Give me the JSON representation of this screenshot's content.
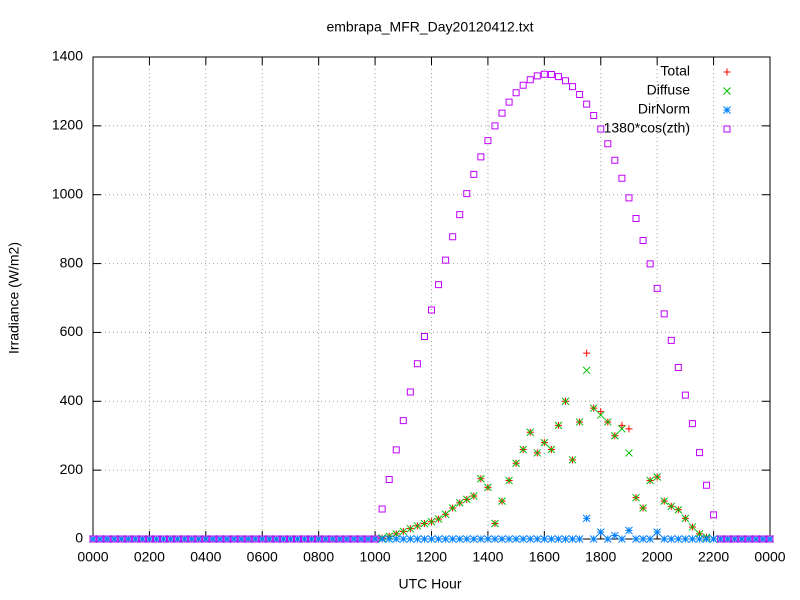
{
  "chart_data": {
    "type": "scatter",
    "title": "embrapa_MFR_Day20120412.txt",
    "x_label": "UTC Hour",
    "y_label": "Irradiance (W/m2)",
    "xlim": [
      0,
      24
    ],
    "ylim": [
      0,
      1400
    ],
    "xticks": [
      {
        "value": 0,
        "label": "0000"
      },
      {
        "value": 2,
        "label": "0200"
      },
      {
        "value": 4,
        "label": "0400"
      },
      {
        "value": 6,
        "label": "0600"
      },
      {
        "value": 8,
        "label": "0800"
      },
      {
        "value": 10,
        "label": "1000"
      },
      {
        "value": 12,
        "label": "1200"
      },
      {
        "value": 14,
        "label": "1400"
      },
      {
        "value": 16,
        "label": "1600"
      },
      {
        "value": 18,
        "label": "1800"
      },
      {
        "value": 20,
        "label": "2000"
      },
      {
        "value": 22,
        "label": "2200"
      },
      {
        "value": 24,
        "label": "0000"
      }
    ],
    "yticks": [
      0,
      200,
      400,
      600,
      800,
      1000,
      1200,
      1400
    ],
    "grid": true,
    "legend": "upper right",
    "x": [
      0,
      0.25,
      0.5,
      0.75,
      1,
      1.25,
      1.5,
      1.75,
      2,
      2.25,
      2.5,
      2.75,
      3,
      3.25,
      3.5,
      3.75,
      4,
      4.25,
      4.5,
      4.75,
      5,
      5.25,
      5.5,
      5.75,
      6,
      6.25,
      6.5,
      6.75,
      7,
      7.25,
      7.5,
      7.75,
      8,
      8.25,
      8.5,
      8.75,
      9,
      9.25,
      9.5,
      9.75,
      10,
      10.25,
      10.5,
      10.75,
      11,
      11.25,
      11.5,
      11.75,
      12,
      12.25,
      12.5,
      12.75,
      13,
      13.25,
      13.5,
      13.75,
      14,
      14.25,
      14.5,
      14.75,
      15,
      15.25,
      15.5,
      15.75,
      16,
      16.25,
      16.5,
      16.75,
      17,
      17.25,
      17.5,
      17.75,
      18,
      18.25,
      18.5,
      18.75,
      19,
      19.25,
      19.5,
      19.75,
      20,
      20.25,
      20.5,
      20.75,
      21,
      21.25,
      21.5,
      21.75,
      22,
      22.25,
      22.5,
      22.75,
      23,
      23.25,
      23.5,
      23.75,
      24
    ],
    "series": [
      {
        "name": "Total",
        "color": "#ff0000",
        "marker": "plus",
        "values": [
          0,
          0,
          0,
          0,
          0,
          0,
          0,
          0,
          0,
          0,
          0,
          0,
          0,
          0,
          0,
          0,
          0,
          0,
          0,
          0,
          0,
          0,
          0,
          0,
          0,
          0,
          0,
          0,
          0,
          0,
          0,
          0,
          0,
          0,
          0,
          0,
          0,
          0,
          0,
          0,
          0,
          3,
          8,
          15,
          22,
          30,
          38,
          45,
          50,
          58,
          72,
          90,
          105,
          115,
          125,
          175,
          150,
          45,
          110,
          170,
          220,
          260,
          310,
          250,
          280,
          260,
          330,
          400,
          230,
          340,
          540,
          380,
          370,
          340,
          300,
          330,
          320,
          120,
          90,
          170,
          180,
          110,
          95,
          85,
          60,
          35,
          15,
          5,
          0,
          0,
          0,
          0,
          0,
          0,
          0,
          0,
          0
        ]
      },
      {
        "name": "Diffuse",
        "color": "#00c000",
        "marker": "cross",
        "values": [
          0,
          0,
          0,
          0,
          0,
          0,
          0,
          0,
          0,
          0,
          0,
          0,
          0,
          0,
          0,
          0,
          0,
          0,
          0,
          0,
          0,
          0,
          0,
          0,
          0,
          0,
          0,
          0,
          0,
          0,
          0,
          0,
          0,
          0,
          0,
          0,
          0,
          0,
          0,
          0,
          0,
          3,
          8,
          15,
          22,
          30,
          38,
          45,
          50,
          58,
          72,
          90,
          105,
          115,
          125,
          175,
          150,
          45,
          110,
          170,
          220,
          260,
          310,
          250,
          280,
          260,
          330,
          400,
          230,
          340,
          490,
          380,
          360,
          340,
          300,
          320,
          250,
          120,
          90,
          170,
          180,
          110,
          95,
          85,
          60,
          35,
          15,
          5,
          0,
          0,
          0,
          0,
          0,
          0,
          0,
          0,
          0
        ]
      },
      {
        "name": "DirNorm",
        "color": "#0080ff",
        "marker": "star",
        "values": [
          0,
          0,
          0,
          0,
          0,
          0,
          0,
          0,
          0,
          0,
          0,
          0,
          0,
          0,
          0,
          0,
          0,
          0,
          0,
          0,
          0,
          0,
          0,
          0,
          0,
          0,
          0,
          0,
          0,
          0,
          0,
          0,
          0,
          0,
          0,
          0,
          0,
          0,
          0,
          0,
          0,
          0,
          0,
          0,
          0,
          0,
          0,
          0,
          0,
          0,
          0,
          0,
          0,
          0,
          0,
          0,
          0,
          0,
          0,
          0,
          0,
          0,
          0,
          0,
          0,
          0,
          0,
          0,
          0,
          0,
          60,
          0,
          20,
          0,
          10,
          0,
          25,
          0,
          0,
          0,
          20,
          0,
          0,
          0,
          0,
          0,
          0,
          0,
          0,
          0,
          0,
          0,
          0,
          0,
          0,
          0,
          0
        ]
      },
      {
        "name": "1380*cos(zth)",
        "color": "#c000ff",
        "marker": "square",
        "values": [
          0,
          0,
          0,
          0,
          0,
          0,
          0,
          0,
          0,
          0,
          0,
          0,
          0,
          0,
          0,
          0,
          0,
          0,
          0,
          0,
          0,
          0,
          0,
          0,
          0,
          0,
          0,
          0,
          0,
          0,
          0,
          0,
          0,
          0,
          0,
          0,
          0,
          0,
          0,
          0,
          0,
          87,
          173,
          259,
          344,
          427,
          509,
          588,
          665,
          739,
          810,
          878,
          942,
          1003,
          1059,
          1110,
          1157,
          1200,
          1237,
          1269,
          1296,
          1318,
          1334,
          1345,
          1350,
          1349,
          1343,
          1331,
          1314,
          1291,
          1263,
          1230,
          1191,
          1148,
          1100,
          1048,
          991,
          931,
          867,
          799,
          728,
          654,
          577,
          498,
          418,
          335,
          251,
          156,
          70,
          0,
          0,
          0,
          0,
          0,
          0,
          0,
          0
        ]
      }
    ]
  }
}
